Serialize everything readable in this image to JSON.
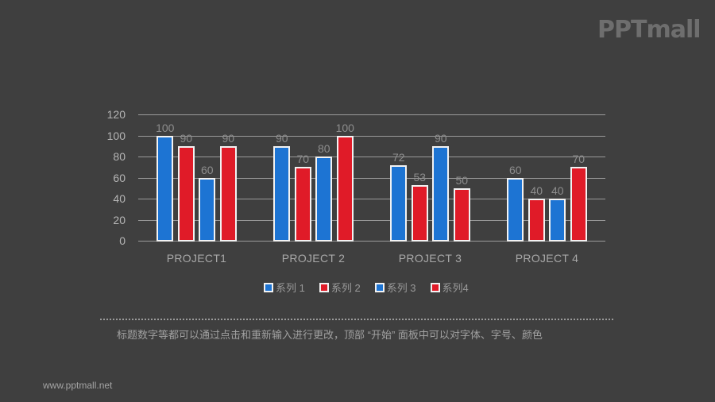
{
  "branding": {
    "logo_text": "PPTmall",
    "website": "www.pptmall.net"
  },
  "colors": {
    "background": "#3f3f3f",
    "series_blue": "#1d74d3",
    "series_red": "#e01b28",
    "bar_border": "#f2f2f2"
  },
  "chart_data": {
    "type": "bar",
    "title": "",
    "xlabel": "",
    "ylabel": "",
    "categories": [
      "PROJECT1",
      "PROJECT 2",
      "PROJECT 3",
      "PROJECT 4"
    ],
    "series": [
      {
        "name": "系列 1",
        "color": "#1d74d3",
        "values": [
          100,
          90,
          72,
          60
        ]
      },
      {
        "name": "系列 2",
        "color": "#e01b28",
        "values": [
          90,
          70,
          53,
          40
        ]
      },
      {
        "name": "系列 3",
        "color": "#1d74d3",
        "values": [
          60,
          80,
          90,
          40
        ]
      },
      {
        "name": "系列4",
        "color": "#e01b28",
        "values": [
          90,
          100,
          50,
          70
        ]
      }
    ],
    "ylim": [
      0,
      120
    ],
    "yticks": [
      "0",
      "20",
      "40",
      "60",
      "80",
      "100",
      "120"
    ],
    "grid": true,
    "data_labels": true,
    "legend_position": "bottom"
  },
  "note": {
    "text": "标题数字等都可以通过点击和重新输入进行更改，顶部 “开始” 面板中可以对字体、字号、颜色"
  }
}
